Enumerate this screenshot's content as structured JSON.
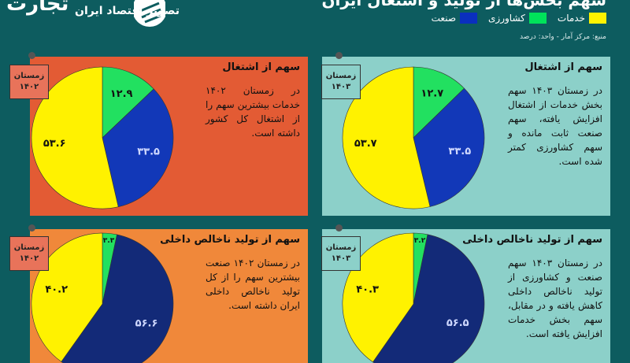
{
  "logo": {
    "main": "تجارت",
    "sub": "تصویر اقتصاد ایران"
  },
  "header": {
    "title": "سهم بخش‌ها از تولید و اشتغال ایران",
    "source": "منبع: مرکز آمار - واحد: درصد"
  },
  "legend": [
    {
      "label": "خدمات",
      "color": "#fff200"
    },
    {
      "label": "کشاورزی",
      "color": "#00e25a"
    },
    {
      "label": "صنعت",
      "color": "#0a2fbf"
    }
  ],
  "colors": {
    "services": "#fff200",
    "agriculture": "#22e060",
    "industry": "#1238b8",
    "industry_dark": "#132a78"
  },
  "chart_data": [
    {
      "type": "pie",
      "title": "سهم از اشتغال",
      "period": [
        "زمستان",
        "۱۴۰۲"
      ],
      "categories": [
        "کشاورزی",
        "صنعت",
        "خدمات"
      ],
      "values": [
        12.9,
        33.5,
        53.6
      ],
      "labels": [
        "۱۲.۹",
        "۳۳.۵",
        "۵۳.۶"
      ],
      "description": "در زمستان ۱۴۰۲ خدمات بیشترین سهم را از اشتغال کل کشور داشته است."
    },
    {
      "type": "pie",
      "title": "سهم از اشتغال",
      "period": [
        "زمستان",
        "۱۴۰۳"
      ],
      "categories": [
        "کشاورزی",
        "صنعت",
        "خدمات"
      ],
      "values": [
        12.7,
        33.5,
        53.7
      ],
      "labels": [
        "۱۲.۷",
        "۳۳.۵",
        "۵۳.۷"
      ],
      "description": "در زمستان ۱۴۰۳ سهم بخش خدمات از اشتغال افزایش یافته، سهم صنعت ثابت مانده و سهم کشاورزی کمتر شده است."
    },
    {
      "type": "pie",
      "title": "سهم از تولید ناخالص داخلی",
      "period": [
        "زمستان",
        "۱۴۰۲"
      ],
      "categories": [
        "کشاورزی",
        "صنعت",
        "خدمات"
      ],
      "values": [
        3.3,
        56.6,
        40.2
      ],
      "labels": [
        "۳.۳",
        "۵۶.۶",
        "۴۰.۲"
      ],
      "description": "در زمستان ۱۴۰۲ صنعت بیشترین سهم را از کل تولید ناخالص داخلی ایران داشته است."
    },
    {
      "type": "pie",
      "title": "سهم از تولید ناخالص داخلی",
      "period": [
        "زمستان",
        "۱۴۰۳"
      ],
      "categories": [
        "کشاورزی",
        "صنعت",
        "خدمات"
      ],
      "values": [
        3.2,
        56.5,
        40.3
      ],
      "labels": [
        "۳.۲",
        "۵۶.۵",
        "۴۰.۳"
      ],
      "description": "در زمستان ۱۴۰۳ سهم صنعت و کشاورزی از تولید ناخالص داخلی کاهش یافته و در مقابل، سهم بخش خدمات افزایش یافته است."
    }
  ]
}
